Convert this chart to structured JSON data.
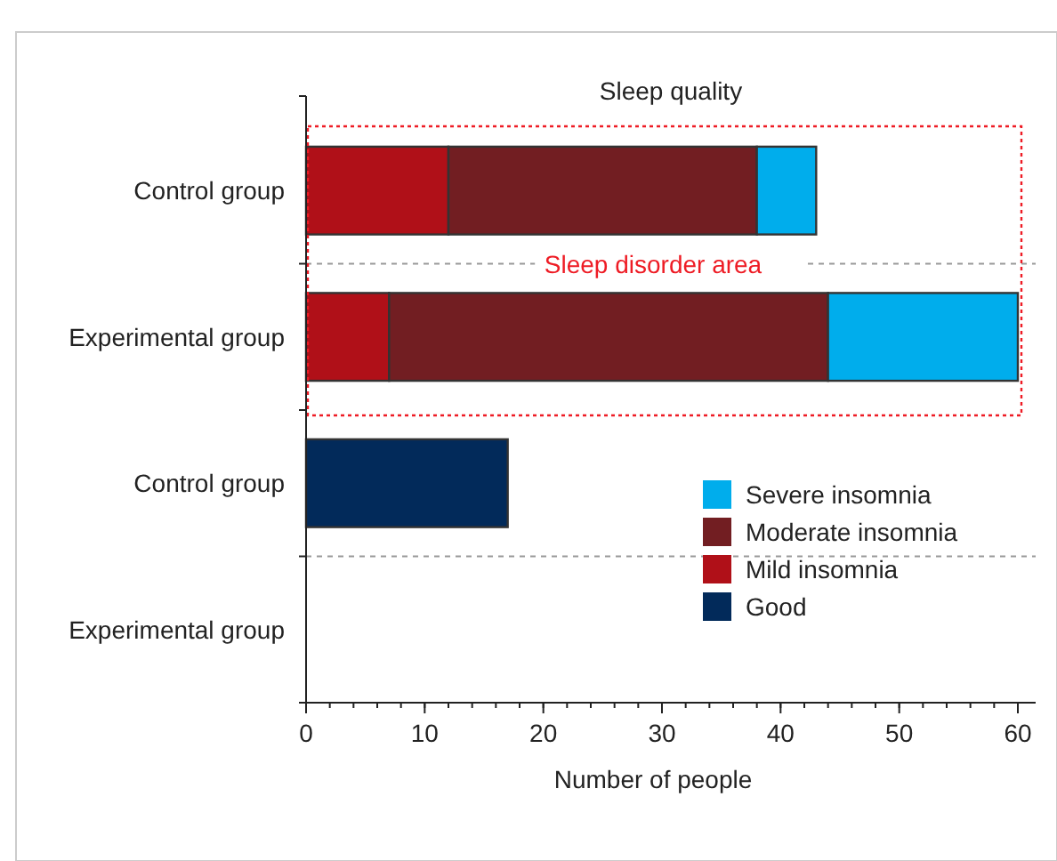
{
  "chart_data": {
    "type": "bar",
    "orientation": "horizontal",
    "stacked": true,
    "title": "Sleep quality",
    "xlabel": "Number of people",
    "categories": [
      "Control group",
      "Experimental group",
      "Control group",
      "Experimental group"
    ],
    "series": [
      {
        "name": "Good",
        "color": "#022a5a",
        "values": [
          0,
          0,
          17,
          0
        ]
      },
      {
        "name": "Mild insomnia",
        "color": "#b01018",
        "values": [
          12,
          7,
          0,
          0
        ]
      },
      {
        "name": "Moderate insomnia",
        "color": "#721e22",
        "values": [
          26,
          37,
          0,
          0
        ]
      },
      {
        "name": "Severe insomnia",
        "color": "#00adec",
        "values": [
          5,
          16,
          0,
          0
        ]
      }
    ],
    "xlim": [
      0,
      61.5
    ],
    "xticks": [
      0,
      10,
      20,
      30,
      40,
      50,
      60
    ],
    "legend": "right",
    "annotations": [
      "Sleep disorder area"
    ]
  }
}
